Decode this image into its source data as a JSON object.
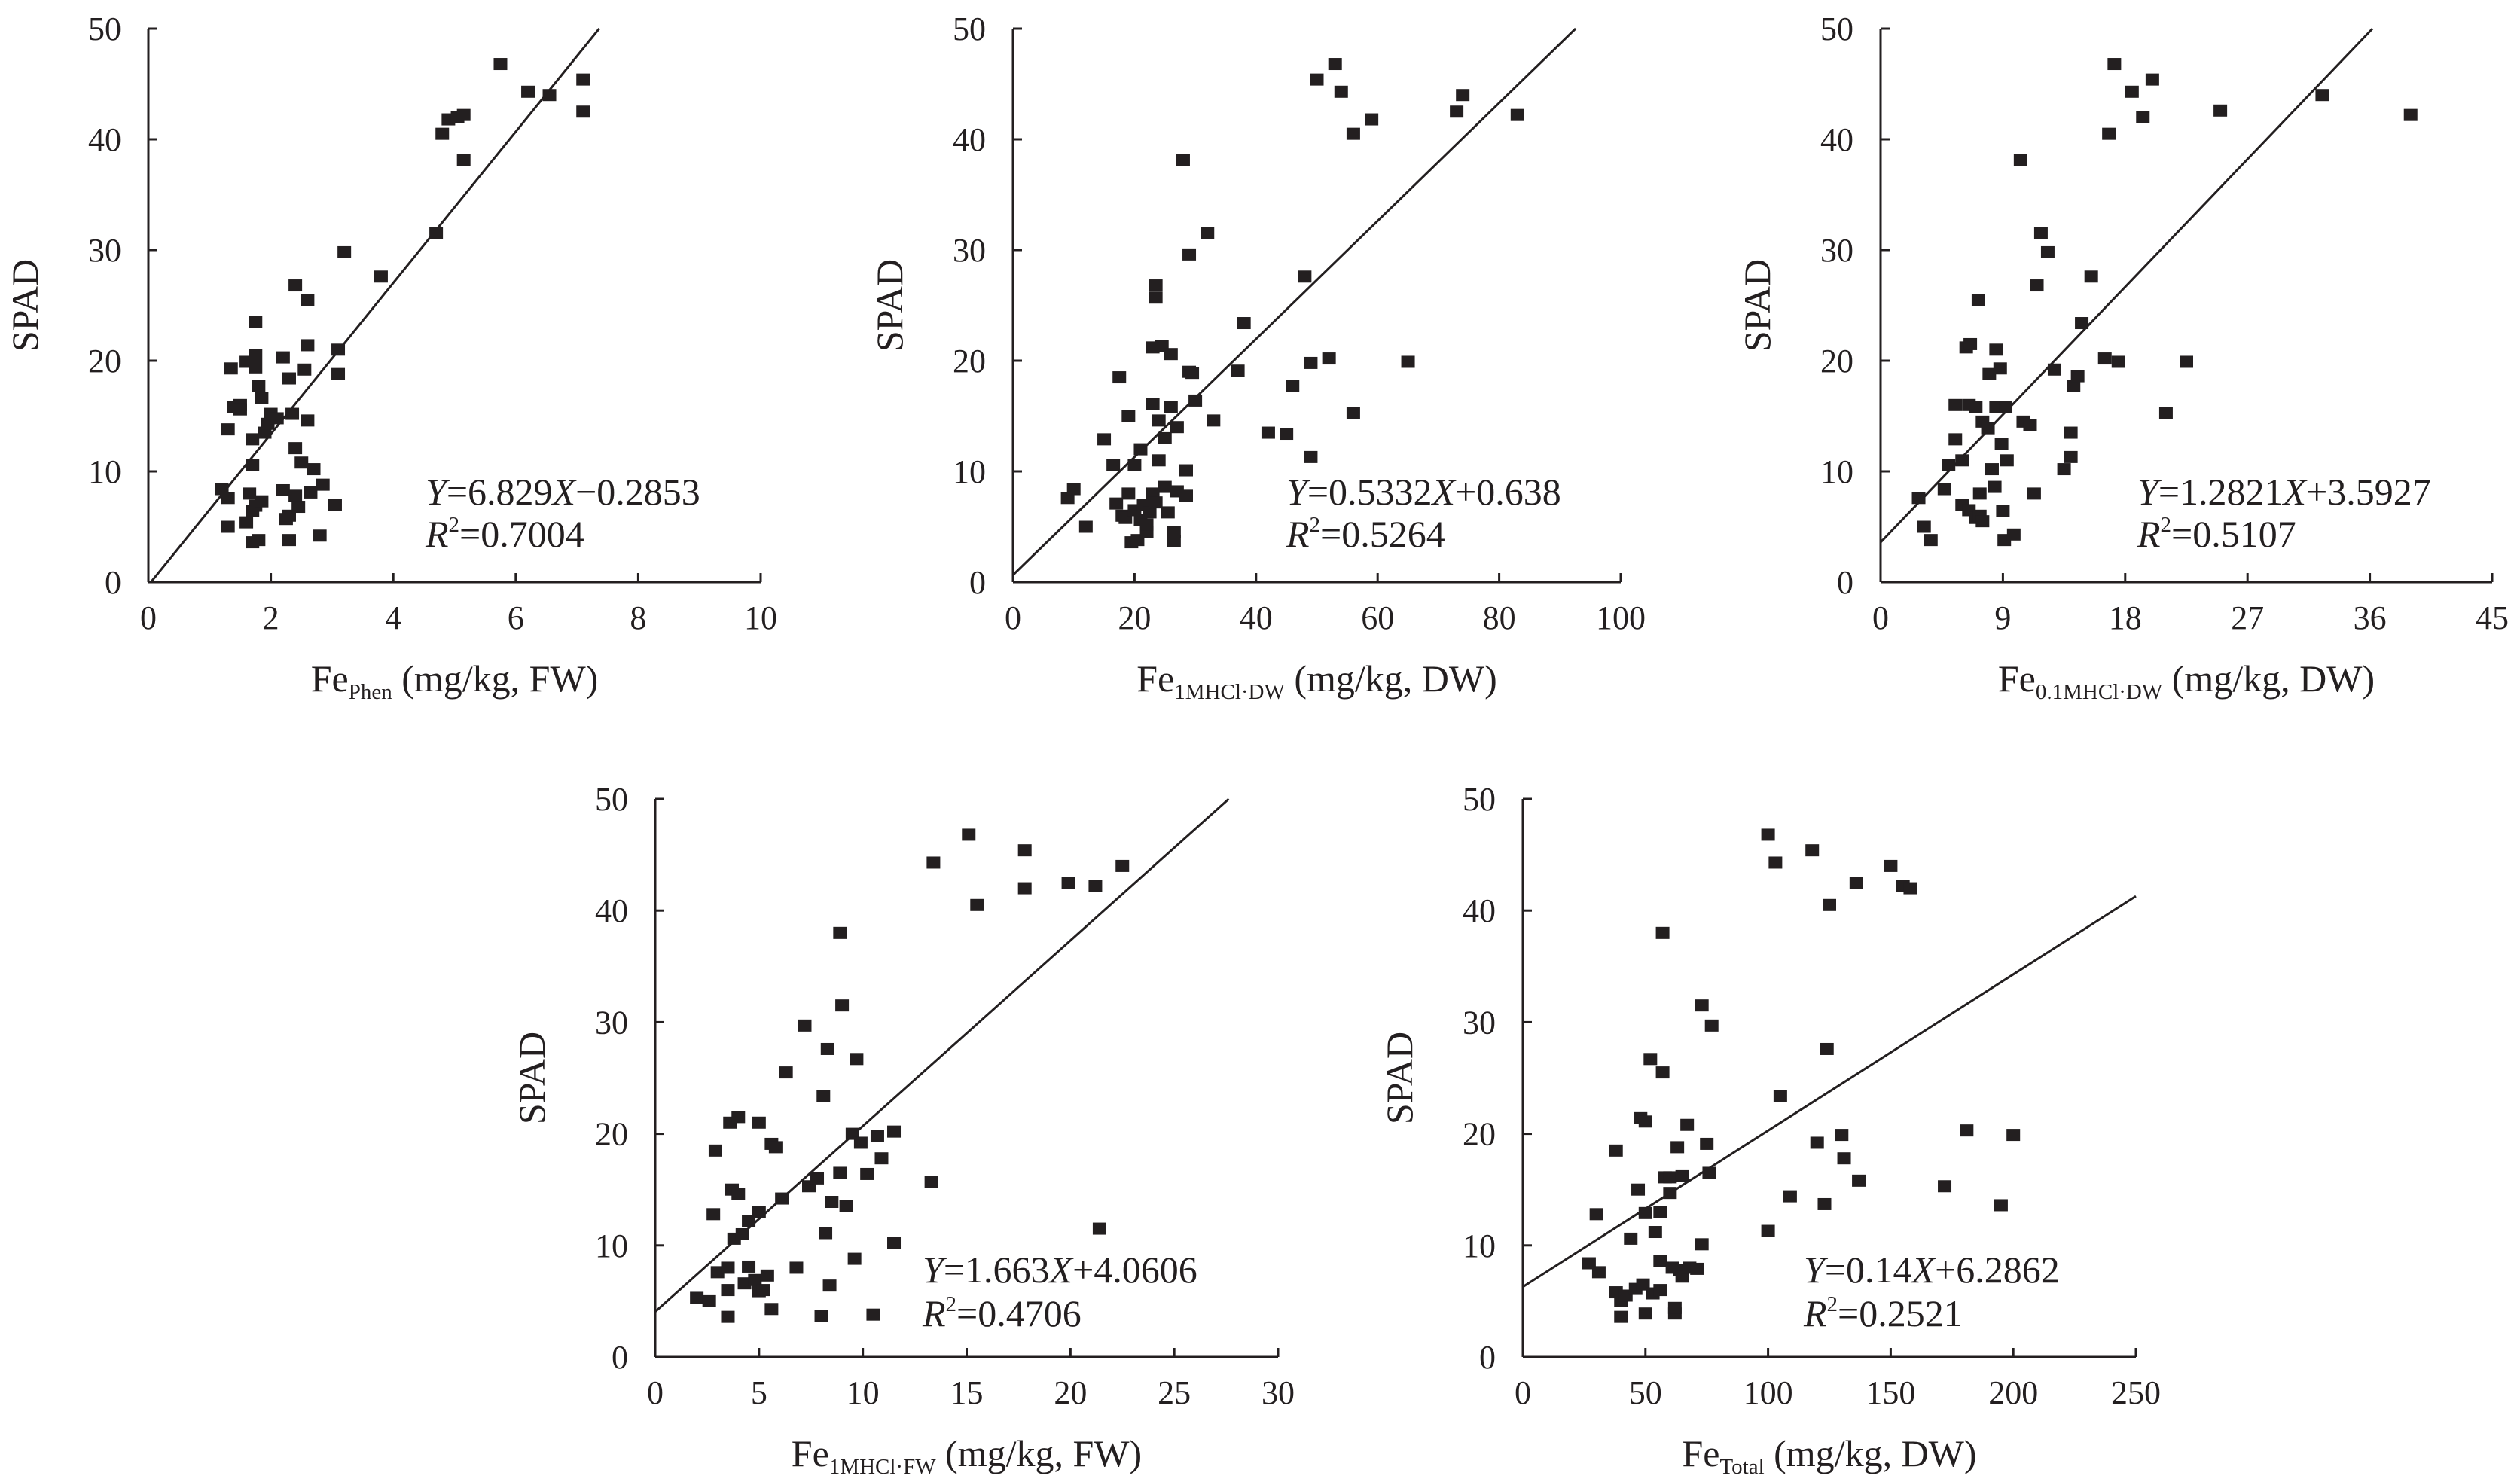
{
  "chart_data": [
    {
      "type": "scatter",
      "ylabel": "SPAD",
      "xlabel": {
        "main": "Fe",
        "sub": "Phen",
        "rest": " (mg/kg, FW)"
      },
      "xlim": [
        0,
        10
      ],
      "ylim": [
        0,
        50
      ],
      "xticks": [
        0,
        2,
        4,
        6,
        8,
        10
      ],
      "yticks": [
        0,
        10,
        20,
        30,
        40,
        50
      ],
      "equation": {
        "y": "Y",
        "x": "X",
        "rhs1": "=6.829",
        "rhs2": "−0.2853",
        "r2": "=0.7004"
      },
      "fit": {
        "slope": 6.829,
        "intercept": -0.2853
      },
      "points": [
        [
          1.2,
          8.4
        ],
        [
          1.3,
          7.6
        ],
        [
          1.3,
          5.0
        ],
        [
          1.3,
          13.8
        ],
        [
          1.35,
          19.3
        ],
        [
          1.4,
          15.8
        ],
        [
          1.5,
          16.0
        ],
        [
          1.5,
          15.6
        ],
        [
          1.6,
          5.4
        ],
        [
          1.6,
          19.9
        ],
        [
          1.65,
          8.0
        ],
        [
          1.7,
          3.6
        ],
        [
          1.7,
          6.4
        ],
        [
          1.7,
          12.9
        ],
        [
          1.7,
          10.6
        ],
        [
          1.75,
          23.5
        ],
        [
          1.75,
          20.5
        ],
        [
          1.75,
          6.9
        ],
        [
          1.75,
          19.4
        ],
        [
          1.8,
          3.8
        ],
        [
          1.8,
          17.7
        ],
        [
          1.85,
          16.6
        ],
        [
          1.85,
          7.3
        ],
        [
          1.9,
          13.5
        ],
        [
          1.95,
          14.3
        ],
        [
          2.0,
          15.2
        ],
        [
          2.1,
          14.8
        ],
        [
          2.2,
          20.3
        ],
        [
          2.2,
          8.3
        ],
        [
          2.25,
          5.7
        ],
        [
          2.3,
          18.4
        ],
        [
          2.3,
          3.8
        ],
        [
          2.3,
          6.0
        ],
        [
          2.35,
          15.2
        ],
        [
          2.4,
          26.8
        ],
        [
          2.4,
          12.1
        ],
        [
          2.4,
          7.8
        ],
        [
          2.45,
          6.8
        ],
        [
          2.5,
          10.8
        ],
        [
          2.55,
          19.2
        ],
        [
          2.6,
          25.5
        ],
        [
          2.6,
          21.4
        ],
        [
          2.6,
          14.6
        ],
        [
          2.65,
          8.1
        ],
        [
          2.7,
          10.2
        ],
        [
          2.8,
          4.2
        ],
        [
          2.85,
          8.8
        ],
        [
          3.05,
          7.0
        ],
        [
          3.1,
          18.8
        ],
        [
          3.1,
          21.0
        ],
        [
          3.2,
          29.8
        ],
        [
          3.8,
          27.6
        ],
        [
          4.7,
          31.5
        ],
        [
          4.8,
          40.5
        ],
        [
          4.9,
          41.8
        ],
        [
          5.05,
          42.0
        ],
        [
          5.15,
          38.1
        ],
        [
          5.15,
          42.2
        ],
        [
          5.75,
          46.8
        ],
        [
          6.2,
          44.3
        ],
        [
          6.55,
          44.0
        ],
        [
          7.1,
          45.4
        ],
        [
          7.1,
          42.5
        ]
      ]
    },
    {
      "type": "scatter",
      "ylabel": "SPAD",
      "xlabel": {
        "main": "Fe",
        "sub": "1MHCl·DW",
        "rest": " (mg/kg, DW)"
      },
      "xlim": [
        0,
        100
      ],
      "ylim": [
        0,
        50
      ],
      "xticks": [
        0,
        20,
        40,
        60,
        80,
        100
      ],
      "yticks": [
        0,
        10,
        20,
        30,
        40,
        50
      ],
      "equation": {
        "y": "Y",
        "x": "X",
        "rhs1": "=0.5332",
        "rhs2": "+0.638",
        "r2": "=0.5264"
      },
      "fit": {
        "slope": 0.5332,
        "intercept": 0.638
      },
      "points": [
        [
          9,
          7.6
        ],
        [
          10,
          8.4
        ],
        [
          12,
          5.0
        ],
        [
          15,
          12.9
        ],
        [
          16.5,
          10.6
        ],
        [
          17,
          7.1
        ],
        [
          17.5,
          18.5
        ],
        [
          18,
          6.0
        ],
        [
          18.5,
          5.8
        ],
        [
          19,
          8.0
        ],
        [
          19,
          15.0
        ],
        [
          19.5,
          3.6
        ],
        [
          20,
          10.6
        ],
        [
          20,
          6.5
        ],
        [
          20.5,
          3.8
        ],
        [
          21,
          5.6
        ],
        [
          21,
          12.0
        ],
        [
          21.5,
          7.0
        ],
        [
          22,
          4.5
        ],
        [
          22,
          5.2
        ],
        [
          22.5,
          6.3
        ],
        [
          23,
          16.1
        ],
        [
          23,
          21.2
        ],
        [
          23,
          8.0
        ],
        [
          23.5,
          7.2
        ],
        [
          23.5,
          25.7
        ],
        [
          23.5,
          26.8
        ],
        [
          24,
          14.6
        ],
        [
          24,
          11.0
        ],
        [
          24.5,
          21.3
        ],
        [
          25,
          8.6
        ],
        [
          25,
          13.0
        ],
        [
          25.5,
          6.3
        ],
        [
          26,
          15.8
        ],
        [
          26,
          20.6
        ],
        [
          26.5,
          3.7
        ],
        [
          26.5,
          4.5
        ],
        [
          27,
          14.0
        ],
        [
          27,
          8.2
        ],
        [
          28,
          38.1
        ],
        [
          28.5,
          7.8
        ],
        [
          28.5,
          10.1
        ],
        [
          29,
          19.0
        ],
        [
          29,
          29.6
        ],
        [
          29.5,
          18.9
        ],
        [
          30,
          16.4
        ],
        [
          32,
          31.5
        ],
        [
          33,
          14.6
        ],
        [
          37,
          19.1
        ],
        [
          38,
          23.4
        ],
        [
          42,
          13.5
        ],
        [
          45,
          13.4
        ],
        [
          46,
          17.7
        ],
        [
          48,
          27.6
        ],
        [
          49,
          11.3
        ],
        [
          49,
          19.8
        ],
        [
          50,
          45.4
        ],
        [
          52,
          20.2
        ],
        [
          53,
          46.8
        ],
        [
          54,
          44.3
        ],
        [
          56,
          15.3
        ],
        [
          56,
          40.5
        ],
        [
          59,
          41.8
        ],
        [
          65,
          19.9
        ],
        [
          73,
          42.5
        ],
        [
          74,
          44.0
        ],
        [
          83,
          42.2
        ]
      ]
    },
    {
      "type": "scatter",
      "ylabel": "SPAD",
      "xlabel": {
        "main": "Fe",
        "sub": "0.1MHCl·DW",
        "rest": " (mg/kg, DW)"
      },
      "xlim": [
        0,
        45
      ],
      "ylim": [
        0,
        50
      ],
      "xticks": [
        0,
        9,
        18,
        27,
        36,
        45
      ],
      "yticks": [
        0,
        10,
        20,
        30,
        40,
        50
      ],
      "equation": {
        "y": "Y",
        "x": "X",
        "rhs1": "=1.2821",
        "rhs2": "+3.5927",
        "r2": "=0.5107"
      },
      "fit": {
        "slope": 1.2821,
        "intercept": 3.5927
      },
      "points": [
        [
          2.8,
          7.6
        ],
        [
          3.2,
          5.0
        ],
        [
          3.7,
          3.8
        ],
        [
          4.7,
          8.4
        ],
        [
          5,
          10.6
        ],
        [
          5.5,
          12.9
        ],
        [
          5.5,
          16.0
        ],
        [
          6,
          7.0
        ],
        [
          6,
          11.0
        ],
        [
          6.3,
          21.2
        ],
        [
          6.5,
          6.5
        ],
        [
          6.5,
          16.0
        ],
        [
          6.6,
          21.5
        ],
        [
          7,
          5.8
        ],
        [
          7,
          15.8
        ],
        [
          7.2,
          25.5
        ],
        [
          7.3,
          8.0
        ],
        [
          7.3,
          6.0
        ],
        [
          7.5,
          14.5
        ],
        [
          7.5,
          5.5
        ],
        [
          7.9,
          13.9
        ],
        [
          8,
          18.8
        ],
        [
          8.2,
          10.2
        ],
        [
          8.4,
          8.6
        ],
        [
          8.5,
          15.8
        ],
        [
          8.5,
          21.0
        ],
        [
          8.8,
          19.3
        ],
        [
          8.9,
          12.5
        ],
        [
          9.2,
          15.8
        ],
        [
          9,
          6.4
        ],
        [
          9.1,
          3.8
        ],
        [
          9.3,
          11.0
        ],
        [
          9.8,
          4.3
        ],
        [
          10.3,
          38.1
        ],
        [
          10.5,
          14.5
        ],
        [
          11,
          14.2
        ],
        [
          11.3,
          8.0
        ],
        [
          11.5,
          26.8
        ],
        [
          11.8,
          31.5
        ],
        [
          12.3,
          29.8
        ],
        [
          12.8,
          19.2
        ],
        [
          13.5,
          10.2
        ],
        [
          14,
          13.5
        ],
        [
          14,
          11.3
        ],
        [
          14.2,
          17.7
        ],
        [
          14.5,
          18.6
        ],
        [
          14.8,
          23.4
        ],
        [
          15.5,
          27.6
        ],
        [
          16.5,
          20.2
        ],
        [
          16.8,
          40.5
        ],
        [
          17.2,
          46.8
        ],
        [
          17.5,
          19.9
        ],
        [
          18.5,
          44.3
        ],
        [
          19.3,
          42.0
        ],
        [
          20,
          45.4
        ],
        [
          21,
          15.3
        ],
        [
          22.5,
          19.9
        ],
        [
          25,
          42.6
        ],
        [
          32.5,
          44.0
        ],
        [
          39,
          42.2
        ]
      ]
    },
    {
      "type": "scatter",
      "ylabel": "SPAD",
      "xlabel": {
        "main": "Fe",
        "sub": "1MHCl·FW",
        "rest": " (mg/kg, FW)"
      },
      "xlim": [
        0,
        30
      ],
      "ylim": [
        0,
        50
      ],
      "xticks": [
        0,
        5,
        10,
        15,
        20,
        25,
        30
      ],
      "yticks": [
        0,
        10,
        20,
        30,
        40,
        50
      ],
      "equation": {
        "y": "Y",
        "x": "X",
        "rhs1": "=1.663",
        "rhs2": "+4.0606",
        "r2": "=0.4706"
      },
      "fit": {
        "slope": 1.663,
        "intercept": 4.0606
      },
      "points": [
        [
          2,
          5.3
        ],
        [
          2.6,
          5.0
        ],
        [
          2.8,
          12.8
        ],
        [
          2.9,
          18.5
        ],
        [
          3,
          7.6
        ],
        [
          3.5,
          8.0
        ],
        [
          3.5,
          3.6
        ],
        [
          3.5,
          6.0
        ],
        [
          3.6,
          21.0
        ],
        [
          3.7,
          15.0
        ],
        [
          3.8,
          10.6
        ],
        [
          4,
          21.5
        ],
        [
          4,
          14.6
        ],
        [
          4.2,
          11.0
        ],
        [
          4.3,
          6.6
        ],
        [
          4.5,
          8.1
        ],
        [
          4.5,
          12.2
        ],
        [
          4.8,
          6.9
        ],
        [
          5,
          5.9
        ],
        [
          5,
          13.0
        ],
        [
          5,
          21.0
        ],
        [
          5.2,
          6.0
        ],
        [
          5.4,
          7.3
        ],
        [
          5.6,
          4.3
        ],
        [
          5.6,
          19.1
        ],
        [
          5.8,
          18.8
        ],
        [
          6.1,
          14.2
        ],
        [
          6.3,
          25.5
        ],
        [
          6.8,
          8.0
        ],
        [
          7.2,
          29.7
        ],
        [
          7.4,
          15.3
        ],
        [
          7.8,
          16.0
        ],
        [
          8,
          3.7
        ],
        [
          8.1,
          23.4
        ],
        [
          8.2,
          11.1
        ],
        [
          8.3,
          27.6
        ],
        [
          8.4,
          6.4
        ],
        [
          8.5,
          13.9
        ],
        [
          8.9,
          38.0
        ],
        [
          8.9,
          16.5
        ],
        [
          9,
          31.5
        ],
        [
          9.2,
          13.5
        ],
        [
          9.5,
          20.0
        ],
        [
          9.6,
          8.8
        ],
        [
          9.7,
          26.7
        ],
        [
          9.9,
          19.2
        ],
        [
          10.2,
          16.4
        ],
        [
          10.5,
          3.8
        ],
        [
          10.7,
          19.8
        ],
        [
          10.9,
          17.8
        ],
        [
          11.5,
          20.2
        ],
        [
          11.5,
          10.2
        ],
        [
          13.3,
          15.7
        ],
        [
          13.4,
          44.3
        ],
        [
          15.1,
          46.8
        ],
        [
          15.5,
          40.5
        ],
        [
          17.8,
          42.0
        ],
        [
          17.8,
          45.4
        ],
        [
          19.9,
          42.5
        ],
        [
          21.2,
          42.2
        ],
        [
          21.4,
          11.5
        ],
        [
          22.5,
          44.0
        ]
      ]
    },
    {
      "type": "scatter",
      "ylabel": "SPAD",
      "xlabel": {
        "main": "Fe",
        "sub": "Total",
        "rest": " (mg/kg, DW)"
      },
      "xlim": [
        0,
        250
      ],
      "ylim": [
        0,
        50
      ],
      "xticks": [
        0,
        50,
        100,
        150,
        200,
        250
      ],
      "yticks": [
        0,
        10,
        20,
        30,
        40,
        50
      ],
      "equation": {
        "y": "Y",
        "x": "X",
        "rhs1": "=0.14",
        "rhs2": "+6.2862",
        "r2": "=0.2521"
      },
      "fit": {
        "slope": 0.14,
        "intercept": 6.2862
      },
      "points": [
        [
          27,
          8.4
        ],
        [
          30,
          12.8
        ],
        [
          31,
          7.6
        ],
        [
          38,
          18.5
        ],
        [
          38,
          5.8
        ],
        [
          40,
          3.6
        ],
        [
          40,
          5.0
        ],
        [
          42,
          5.5
        ],
        [
          44,
          10.6
        ],
        [
          46,
          6.1
        ],
        [
          47,
          15.0
        ],
        [
          48,
          21.4
        ],
        [
          49,
          6.5
        ],
        [
          50,
          12.9
        ],
        [
          50,
          21.1
        ],
        [
          50,
          3.9
        ],
        [
          52,
          26.7
        ],
        [
          53,
          5.7
        ],
        [
          54,
          11.2
        ],
        [
          56,
          13.0
        ],
        [
          56,
          8.6
        ],
        [
          56,
          6.0
        ],
        [
          57,
          25.5
        ],
        [
          57,
          38.0
        ],
        [
          58,
          16.1
        ],
        [
          60,
          14.7
        ],
        [
          60,
          16.1
        ],
        [
          61,
          8.0
        ],
        [
          62,
          3.9
        ],
        [
          62,
          4.4
        ],
        [
          63,
          18.8
        ],
        [
          64,
          7.8
        ],
        [
          65,
          16.2
        ],
        [
          65,
          7.2
        ],
        [
          67,
          20.8
        ],
        [
          68,
          8.0
        ],
        [
          71,
          7.9
        ],
        [
          73,
          31.5
        ],
        [
          73,
          10.1
        ],
        [
          75,
          19.1
        ],
        [
          76,
          16.5
        ],
        [
          77,
          29.7
        ],
        [
          100,
          46.8
        ],
        [
          100,
          11.3
        ],
        [
          103,
          44.3
        ],
        [
          105,
          23.4
        ],
        [
          109,
          14.4
        ],
        [
          118,
          45.4
        ],
        [
          120,
          19.2
        ],
        [
          123,
          13.7
        ],
        [
          124,
          27.6
        ],
        [
          125,
          40.5
        ],
        [
          130,
          19.9
        ],
        [
          131,
          17.8
        ],
        [
          136,
          42.5
        ],
        [
          137,
          15.8
        ],
        [
          150,
          44.0
        ],
        [
          155,
          42.2
        ],
        [
          158,
          42.0
        ],
        [
          172,
          15.3
        ],
        [
          181,
          20.3
        ],
        [
          195,
          13.6
        ],
        [
          200,
          19.9
        ]
      ]
    }
  ]
}
